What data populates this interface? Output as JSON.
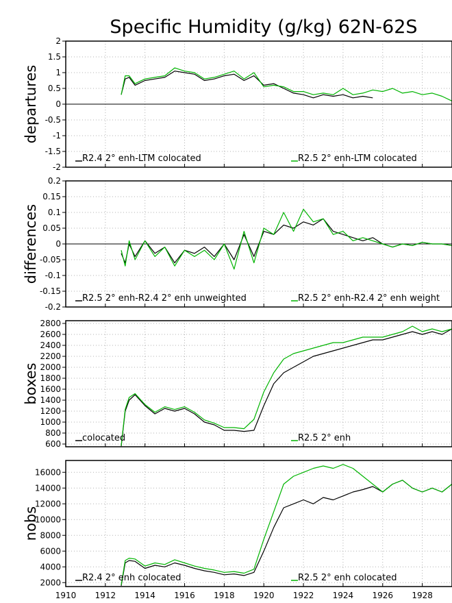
{
  "title": "Specific Humidity (g/kg) 62N-62S",
  "colors": {
    "black_series": "#000000",
    "green_series": "#00b400",
    "grid": "#b0b0b0"
  },
  "x_axis": {
    "range": [
      1910,
      1929.5
    ],
    "ticks": [
      1910,
      1912,
      1914,
      1916,
      1918,
      1920,
      1922,
      1924,
      1926,
      1928
    ]
  },
  "chart_data": [
    {
      "type": "line",
      "ylabel": "departures",
      "ylim": [
        -2,
        2
      ],
      "yticks": [
        -2,
        -1.5,
        -1,
        -0.5,
        0,
        0.5,
        1,
        1.5,
        2
      ],
      "yticklabels": [
        "-2",
        "-1.5",
        "-1",
        "-0.5",
        "0",
        "0.5",
        "1",
        "1.5",
        "2"
      ],
      "zero_line": true,
      "grid": true,
      "series": [
        {
          "name": "R2.4 2° enh-LTM colocated",
          "color": "#000000",
          "x": [
            1912.8,
            1913.0,
            1913.2,
            1913.5,
            1914.0,
            1914.5,
            1915.0,
            1915.5,
            1916.0,
            1916.5,
            1917.0,
            1917.5,
            1918.0,
            1918.5,
            1919.0,
            1919.5,
            1920.0,
            1920.5,
            1921.0,
            1921.5,
            1922.0,
            1922.5,
            1923.0,
            1923.5,
            1924.0,
            1924.5,
            1925.0,
            1925.5
          ],
          "y": [
            0.3,
            0.8,
            0.85,
            0.6,
            0.75,
            0.8,
            0.85,
            1.05,
            1.0,
            0.95,
            0.75,
            0.8,
            0.9,
            0.95,
            0.75,
            0.9,
            0.6,
            0.65,
            0.5,
            0.35,
            0.3,
            0.2,
            0.3,
            0.25,
            0.3,
            0.2,
            0.25,
            0.2
          ]
        },
        {
          "name": "R2.5 2° enh-LTM colocated",
          "color": "#00b400",
          "x": [
            1912.8,
            1913.0,
            1913.2,
            1913.5,
            1914.0,
            1914.5,
            1915.0,
            1915.5,
            1916.0,
            1916.5,
            1917.0,
            1917.5,
            1918.0,
            1918.5,
            1919.0,
            1919.5,
            1920.0,
            1920.5,
            1921.0,
            1921.5,
            1922.0,
            1922.5,
            1923.0,
            1923.5,
            1924.0,
            1924.5,
            1925.0,
            1925.5,
            1926.0,
            1926.5,
            1927.0,
            1927.5,
            1928.0,
            1928.5,
            1929.0,
            1929.5
          ],
          "y": [
            0.3,
            0.9,
            0.9,
            0.65,
            0.8,
            0.85,
            0.9,
            1.15,
            1.05,
            1.0,
            0.8,
            0.85,
            0.95,
            1.05,
            0.8,
            1.0,
            0.55,
            0.6,
            0.55,
            0.4,
            0.4,
            0.3,
            0.35,
            0.3,
            0.5,
            0.3,
            0.35,
            0.45,
            0.4,
            0.5,
            0.35,
            0.4,
            0.3,
            0.35,
            0.25,
            0.1
          ]
        }
      ]
    },
    {
      "type": "line",
      "ylabel": "differences",
      "ylim": [
        -0.2,
        0.2
      ],
      "yticks": [
        -0.2,
        -0.15,
        -0.1,
        -0.05,
        0,
        0.05,
        0.1,
        0.15,
        0.2
      ],
      "yticklabels": [
        "-0.2",
        "-0.15",
        "-0.1",
        "-0.05",
        "0",
        "0.05",
        "0.1",
        "0.15",
        "0.2"
      ],
      "zero_line": true,
      "grid": true,
      "series": [
        {
          "name": "R2.5 2° enh-R2.4 2° enh unweighted",
          "color": "#000000",
          "x": [
            1912.8,
            1913.0,
            1913.2,
            1913.5,
            1914.0,
            1914.5,
            1915.0,
            1915.5,
            1916.0,
            1916.5,
            1917.0,
            1917.5,
            1918.0,
            1918.5,
            1919.0,
            1919.5,
            1920.0,
            1920.5,
            1921.0,
            1921.5,
            1922.0,
            1922.5,
            1923.0,
            1923.5,
            1924.0,
            1924.5,
            1925.0,
            1925.5,
            1926.0,
            1926.5,
            1927.0,
            1927.5,
            1928.0,
            1928.5,
            1929.0,
            1929.5
          ],
          "y": [
            -0.03,
            -0.06,
            0.0,
            -0.04,
            0.01,
            -0.03,
            -0.01,
            -0.06,
            -0.02,
            -0.03,
            -0.01,
            -0.04,
            0.0,
            -0.05,
            0.03,
            -0.04,
            0.04,
            0.03,
            0.06,
            0.05,
            0.07,
            0.06,
            0.08,
            0.04,
            0.03,
            0.02,
            0.01,
            0.02,
            0.0,
            -0.01,
            0.0,
            -0.005,
            0.005,
            0.0,
            0.0,
            -0.005
          ]
        },
        {
          "name": "R2.5 2° enh-R2.4 2° enh weight",
          "color": "#00b400",
          "x": [
            1912.8,
            1913.0,
            1913.2,
            1913.5,
            1914.0,
            1914.5,
            1915.0,
            1915.5,
            1916.0,
            1916.5,
            1917.0,
            1917.5,
            1918.0,
            1918.5,
            1919.0,
            1919.5,
            1920.0,
            1920.5,
            1921.0,
            1921.5,
            1922.0,
            1922.5,
            1923.0,
            1923.5,
            1924.0,
            1924.5,
            1925.0,
            1925.5,
            1926.0,
            1926.5,
            1927.0,
            1927.5,
            1928.0,
            1928.5,
            1929.0,
            1929.5
          ],
          "y": [
            -0.02,
            -0.07,
            0.01,
            -0.05,
            0.01,
            -0.04,
            -0.01,
            -0.07,
            -0.02,
            -0.04,
            -0.02,
            -0.05,
            0.0,
            -0.08,
            0.04,
            -0.06,
            0.05,
            0.03,
            0.1,
            0.04,
            0.11,
            0.07,
            0.08,
            0.03,
            0.04,
            0.01,
            0.02,
            0.01,
            0.0,
            -0.01,
            0.0,
            -0.005,
            0.005,
            0.0,
            0.0,
            -0.005
          ]
        }
      ]
    },
    {
      "type": "line",
      "ylabel": "boxes",
      "ylim": [
        550,
        2850
      ],
      "yticks": [
        600,
        800,
        1000,
        1200,
        1400,
        1600,
        1800,
        2000,
        2200,
        2400,
        2600,
        2800
      ],
      "yticklabels": [
        "600",
        "800",
        "1000",
        "1200",
        "1400",
        "1600",
        "1800",
        "2000",
        "2200",
        "2400",
        "2600",
        "2800"
      ],
      "zero_line": false,
      "grid": true,
      "series": [
        {
          "name": "colocated",
          "color": "#000000",
          "x": [
            1912.8,
            1913.0,
            1913.2,
            1913.5,
            1914.0,
            1914.5,
            1915.0,
            1915.5,
            1916.0,
            1916.5,
            1917.0,
            1917.5,
            1918.0,
            1918.5,
            1919.0,
            1919.5,
            1920.0,
            1920.5,
            1921.0,
            1921.5,
            1922.0,
            1922.5,
            1923.0,
            1923.5,
            1924.0,
            1924.5,
            1925.0,
            1925.5,
            1926.0,
            1926.5,
            1927.0,
            1927.5,
            1928.0,
            1928.5,
            1929.0,
            1929.5
          ],
          "y": [
            560,
            1200,
            1400,
            1500,
            1300,
            1150,
            1250,
            1200,
            1250,
            1150,
            1000,
            950,
            850,
            850,
            830,
            850,
            1300,
            1700,
            1900,
            2000,
            2100,
            2200,
            2250,
            2300,
            2350,
            2400,
            2450,
            2500,
            2500,
            2550,
            2600,
            2650,
            2600,
            2650,
            2600,
            2700
          ]
        },
        {
          "name": "R2.5 2° enh",
          "color": "#00b400",
          "x": [
            1912.8,
            1913.0,
            1913.2,
            1913.5,
            1914.0,
            1914.5,
            1915.0,
            1915.5,
            1916.0,
            1916.5,
            1917.0,
            1917.5,
            1918.0,
            1918.5,
            1919.0,
            1919.5,
            1920.0,
            1920.5,
            1921.0,
            1921.5,
            1922.0,
            1922.5,
            1923.0,
            1923.5,
            1924.0,
            1924.5,
            1925.0,
            1925.5,
            1926.0,
            1926.5,
            1927.0,
            1927.5,
            1928.0,
            1928.5,
            1929.0,
            1929.5
          ],
          "y": [
            570,
            1230,
            1450,
            1520,
            1320,
            1180,
            1280,
            1230,
            1280,
            1180,
            1040,
            980,
            900,
            900,
            880,
            1050,
            1550,
            1900,
            2150,
            2250,
            2300,
            2350,
            2400,
            2450,
            2450,
            2500,
            2550,
            2550,
            2550,
            2600,
            2650,
            2750,
            2650,
            2700,
            2650,
            2700
          ]
        }
      ]
    },
    {
      "type": "line",
      "ylabel": "nobs",
      "ylim": [
        1500,
        17500
      ],
      "yticks": [
        2000,
        4000,
        6000,
        8000,
        10000,
        12000,
        14000,
        16000
      ],
      "yticklabels": [
        "2000",
        "4000",
        "6000",
        "8000",
        "10000",
        "12000",
        "14000",
        "16000"
      ],
      "zero_line": false,
      "grid": true,
      "series": [
        {
          "name": "R2.4 2° enh colocated",
          "color": "#000000",
          "x": [
            1912.8,
            1913.0,
            1913.2,
            1913.5,
            1914.0,
            1914.5,
            1915.0,
            1915.5,
            1916.0,
            1916.5,
            1917.0,
            1917.5,
            1918.0,
            1918.5,
            1919.0,
            1919.5,
            1920.0,
            1920.5,
            1921.0,
            1921.5,
            1922.0,
            1922.5,
            1923.0,
            1923.5,
            1924.0,
            1924.5,
            1925.0,
            1925.5,
            1926.0,
            1926.5,
            1927.0,
            1927.5,
            1928.0,
            1928.5,
            1929.0,
            1929.5
          ],
          "y": [
            1600,
            4500,
            4800,
            4700,
            3800,
            4200,
            4000,
            4500,
            4200,
            3800,
            3500,
            3300,
            3000,
            3100,
            2900,
            3300,
            6000,
            9000,
            11500,
            12000,
            12500,
            12000,
            12800,
            12500,
            13000,
            13500,
            13800,
            14200,
            13500,
            14500,
            15000,
            14000,
            13500,
            14000,
            13500,
            14500
          ]
        },
        {
          "name": "R2.5 2° enh colocated",
          "color": "#00b400",
          "x": [
            1912.8,
            1913.0,
            1913.2,
            1913.5,
            1914.0,
            1914.5,
            1915.0,
            1915.5,
            1916.0,
            1916.5,
            1917.0,
            1917.5,
            1918.0,
            1918.5,
            1919.0,
            1919.5,
            1920.0,
            1920.5,
            1921.0,
            1921.5,
            1922.0,
            1922.5,
            1923.0,
            1923.5,
            1924.0,
            1924.5,
            1925.0,
            1925.5,
            1926.0,
            1926.5,
            1927.0,
            1927.5,
            1928.0,
            1928.5,
            1929.0,
            1929.5
          ],
          "y": [
            1700,
            4800,
            5100,
            5000,
            4100,
            4500,
            4300,
            4900,
            4500,
            4100,
            3800,
            3600,
            3300,
            3400,
            3200,
            3700,
            7500,
            11000,
            14500,
            15500,
            16000,
            16500,
            16800,
            16500,
            17000,
            16500,
            15500,
            14500,
            13500,
            14500,
            15000,
            14000,
            13500,
            14000,
            13500,
            14500
          ]
        }
      ]
    }
  ]
}
